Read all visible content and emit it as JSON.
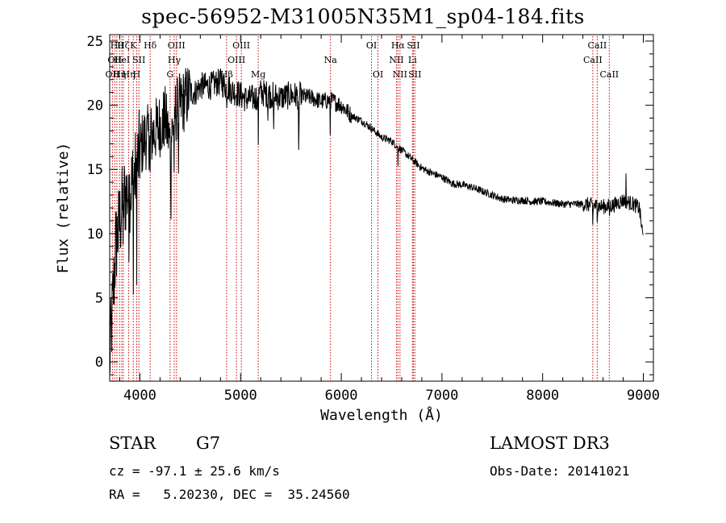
{
  "chart_data": {
    "type": "line",
    "title": "spec-56952-M31005N35M1_sp04-184.fits",
    "xlabel": "Wavelength (Å)",
    "ylabel": "Flux (relative)",
    "xlim": [
      3700,
      9100
    ],
    "ylim": [
      -1.5,
      25.5
    ],
    "xticks": [
      4000,
      5000,
      6000,
      7000,
      8000,
      9000
    ],
    "yticks": [
      0,
      5,
      10,
      15,
      20,
      25
    ],
    "continuum": {
      "x": [
        3700,
        3720,
        3760,
        3800,
        3850,
        3900,
        3950,
        4000,
        4050,
        4100,
        4150,
        4200,
        4250,
        4300,
        4350,
        4400,
        4450,
        4500,
        4550,
        4600,
        4650,
        4700,
        4750,
        4800,
        4850,
        4900,
        4950,
        5000,
        5050,
        5100,
        5150,
        5200,
        5300,
        5400,
        5500,
        5600,
        5700,
        5800,
        5900,
        6000,
        6100,
        6200,
        6300,
        6400,
        6500,
        6600,
        6700,
        6800,
        6900,
        7000,
        7100,
        7200,
        7300,
        7400,
        7500,
        7600,
        7700,
        7800,
        7900,
        8000,
        8100,
        8200,
        8300,
        8400,
        8500,
        8600,
        8700,
        8800,
        8900,
        8960,
        9000
      ],
      "y": [
        0,
        3,
        9,
        11,
        13,
        13.5,
        14.5,
        16.5,
        17.5,
        17.5,
        18,
        18.5,
        19,
        17,
        19.5,
        20,
        20.5,
        21,
        21,
        21.5,
        21.5,
        21.5,
        21.7,
        21.8,
        21.5,
        21.2,
        21,
        20.8,
        20.5,
        20.5,
        20.6,
        21,
        20.8,
        20.6,
        20.8,
        20.7,
        20.6,
        20.3,
        20.4,
        20,
        19.2,
        18.8,
        18.2,
        17.5,
        17.2,
        16.5,
        15.8,
        15.1,
        14.7,
        14.4,
        13.9,
        13.8,
        13.6,
        13.3,
        13.0,
        12.7,
        12.6,
        12.6,
        12.5,
        12.5,
        12.4,
        12.3,
        12.3,
        12.3,
        12.2,
        12.1,
        12.2,
        12.6,
        12.3,
        12.0,
        9.5
      ]
    },
    "absorption_features": [
      {
        "x": 3835,
        "depth": 4
      },
      {
        "x": 3889,
        "depth": 5
      },
      {
        "x": 3934,
        "depth": 8
      },
      {
        "x": 3968,
        "depth": 8
      },
      {
        "x": 4102,
        "depth": 5
      },
      {
        "x": 4227,
        "depth": 3
      },
      {
        "x": 4308,
        "depth": 7
      },
      {
        "x": 4340,
        "depth": 8
      },
      {
        "x": 4383,
        "depth": 4
      },
      {
        "x": 4861,
        "depth": 3
      },
      {
        "x": 5167,
        "depth": 3
      },
      {
        "x": 5175,
        "depth": 5
      },
      {
        "x": 5270,
        "depth": 2
      },
      {
        "x": 5328,
        "depth": 3
      },
      {
        "x": 5577,
        "depth": 10
      },
      {
        "x": 5890,
        "depth": 3
      },
      {
        "x": 6563,
        "depth": 2
      },
      {
        "x": 8498,
        "depth": 2
      },
      {
        "x": 8542,
        "depth": 2
      },
      {
        "x": 8662,
        "depth": 1.5
      }
    ],
    "emission_features": [
      {
        "x": 5577,
        "height": 4
      },
      {
        "x": 8827,
        "height": 2
      }
    ],
    "line_markers": [
      {
        "x": 3727,
        "row": 2,
        "label": "OII"
      },
      {
        "x": 3750,
        "row": 1,
        "label": "OII"
      },
      {
        "x": 3771,
        "row": 0,
        "label": "Hθ"
      },
      {
        "x": 3798,
        "row": 2,
        "label": "Hη"
      },
      {
        "x": 3820,
        "row": 1,
        "label": "HeI"
      },
      {
        "x": 3835,
        "row": 0,
        "label": "Hζ"
      },
      {
        "x": 3889,
        "row": 2,
        "label": "Hη"
      },
      {
        "x": 3934,
        "row": 0,
        "label": "K"
      },
      {
        "x": 3968,
        "row": 2,
        "label": "H"
      },
      {
        "x": 3990,
        "row": 1,
        "label": "SII"
      },
      {
        "x": 4102,
        "row": 0,
        "label": "Hδ"
      },
      {
        "x": 4300,
        "row": 2,
        "label": "G"
      },
      {
        "x": 4341,
        "row": 1,
        "label": "Hγ"
      },
      {
        "x": 4363,
        "row": 0,
        "label": "OIII"
      },
      {
        "x": 4861,
        "row": 2,
        "label": "Hβ"
      },
      {
        "x": 4959,
        "row": 1,
        "label": "OIII"
      },
      {
        "x": 5007,
        "row": 0,
        "label": "OIII"
      },
      {
        "x": 5175,
        "row": 2,
        "label": "Mg"
      },
      {
        "x": 5893,
        "row": 1,
        "label": "Na"
      },
      {
        "x": 6300,
        "row": 0,
        "label": "OI"
      },
      {
        "x": 6364,
        "row": 2,
        "label": "OI"
      },
      {
        "x": 6548,
        "row": 1,
        "label": "NII"
      },
      {
        "x": 6563,
        "row": 0,
        "label": "Hα"
      },
      {
        "x": 6583,
        "row": 2,
        "label": "NII"
      },
      {
        "x": 6707,
        "row": 1,
        "label": "Li"
      },
      {
        "x": 6716,
        "row": 0,
        "label": "SII"
      },
      {
        "x": 6731,
        "row": 2,
        "label": "SII"
      },
      {
        "x": 8498,
        "row": 1,
        "label": "CaII"
      },
      {
        "x": 8542,
        "row": 0,
        "label": "CaII"
      },
      {
        "x": 8662,
        "row": 2,
        "label": "CaII"
      }
    ]
  },
  "info": {
    "class": "STAR",
    "subclass": "G7",
    "survey": "LAMOST DR3",
    "cz": "cz = -97.1 ± 25.6 km/s",
    "obs_date": "Obs-Date: 20141021",
    "radec": "RA =   5.20230, DEC =  35.24560"
  }
}
